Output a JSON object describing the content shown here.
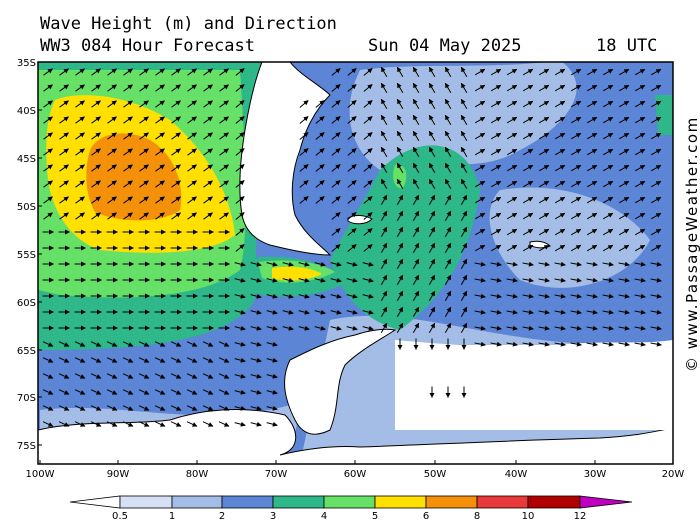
{
  "header": {
    "title": "Wave Height (m) and Direction",
    "model": "WW3 084 Hour Forecast",
    "date": "Sun 04 May 2025",
    "time": "18 UTC"
  },
  "credit": "© www.PassageWeather.com",
  "lat_labels": [
    "35S",
    "40S",
    "45S",
    "50S",
    "55S",
    "60S",
    "65S",
    "70S",
    "75S"
  ],
  "lon_labels": [
    "100W",
    "90W",
    "80W",
    "70W",
    "60W",
    "50W",
    "40W",
    "30W",
    "20W"
  ],
  "legend": {
    "values": [
      "0.5",
      "1",
      "2",
      "3",
      "4",
      "5",
      "6",
      "8",
      "10",
      "12"
    ],
    "colors": [
      "#ffffff",
      "#d6e0f5",
      "#a4bde6",
      "#5c85d6",
      "#2eb88a",
      "#66e066",
      "#ffe000",
      "#f5900a",
      "#e83a3a",
      "#b00000",
      "#c000c0"
    ]
  },
  "colors": {
    "land": "#ffffff",
    "coast": "#000000",
    "arrow": "#000000"
  }
}
